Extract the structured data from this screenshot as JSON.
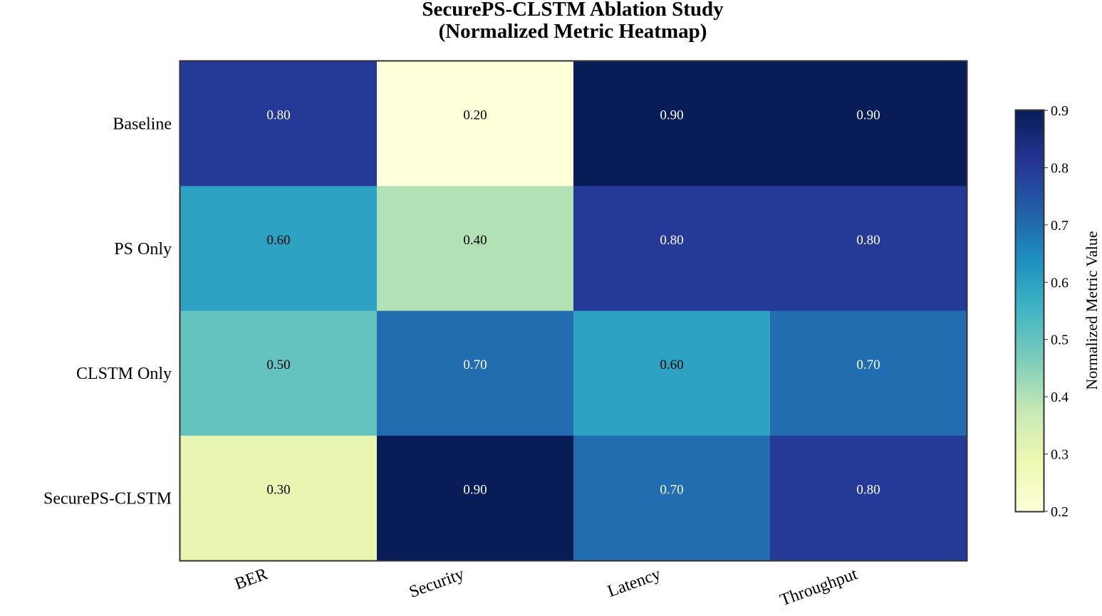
{
  "chart_data": {
    "type": "heatmap",
    "title": "SecurePS-CLSTM Ablation Study",
    "subtitle": "(Normalized Metric Heatmap)",
    "rows": [
      "Baseline",
      "PS Only",
      "CLSTM Only",
      "SecurePS-CLSTM"
    ],
    "columns": [
      "BER",
      "Security",
      "Latency",
      "Throughput"
    ],
    "values": [
      [
        0.8,
        0.2,
        0.9,
        0.9
      ],
      [
        0.6,
        0.4,
        0.8,
        0.8
      ],
      [
        0.5,
        0.7,
        0.6,
        0.7
      ],
      [
        0.3,
        0.9,
        0.7,
        0.8
      ]
    ],
    "value_labels": [
      [
        "0.80",
        "0.20",
        "0.90",
        "0.90"
      ],
      [
        "0.60",
        "0.40",
        "0.80",
        "0.80"
      ],
      [
        "0.50",
        "0.70",
        "0.60",
        "0.70"
      ],
      [
        "0.30",
        "0.90",
        "0.70",
        "0.80"
      ]
    ],
    "colorbar": {
      "label": "Normalized Metric Value",
      "range": [
        0.2,
        0.9
      ],
      "ticks": [
        "0.2",
        "0.3",
        "0.4",
        "0.5",
        "0.6",
        "0.7",
        "0.8",
        "0.9"
      ],
      "colormap": "YlGnBu"
    },
    "colormap_stops": [
      "#ffffd9",
      "#edf8b1",
      "#c7e9b4",
      "#7fcdbb",
      "#41b6c4",
      "#1d91c0",
      "#225ea8",
      "#253494",
      "#081d58"
    ],
    "grid": false
  }
}
